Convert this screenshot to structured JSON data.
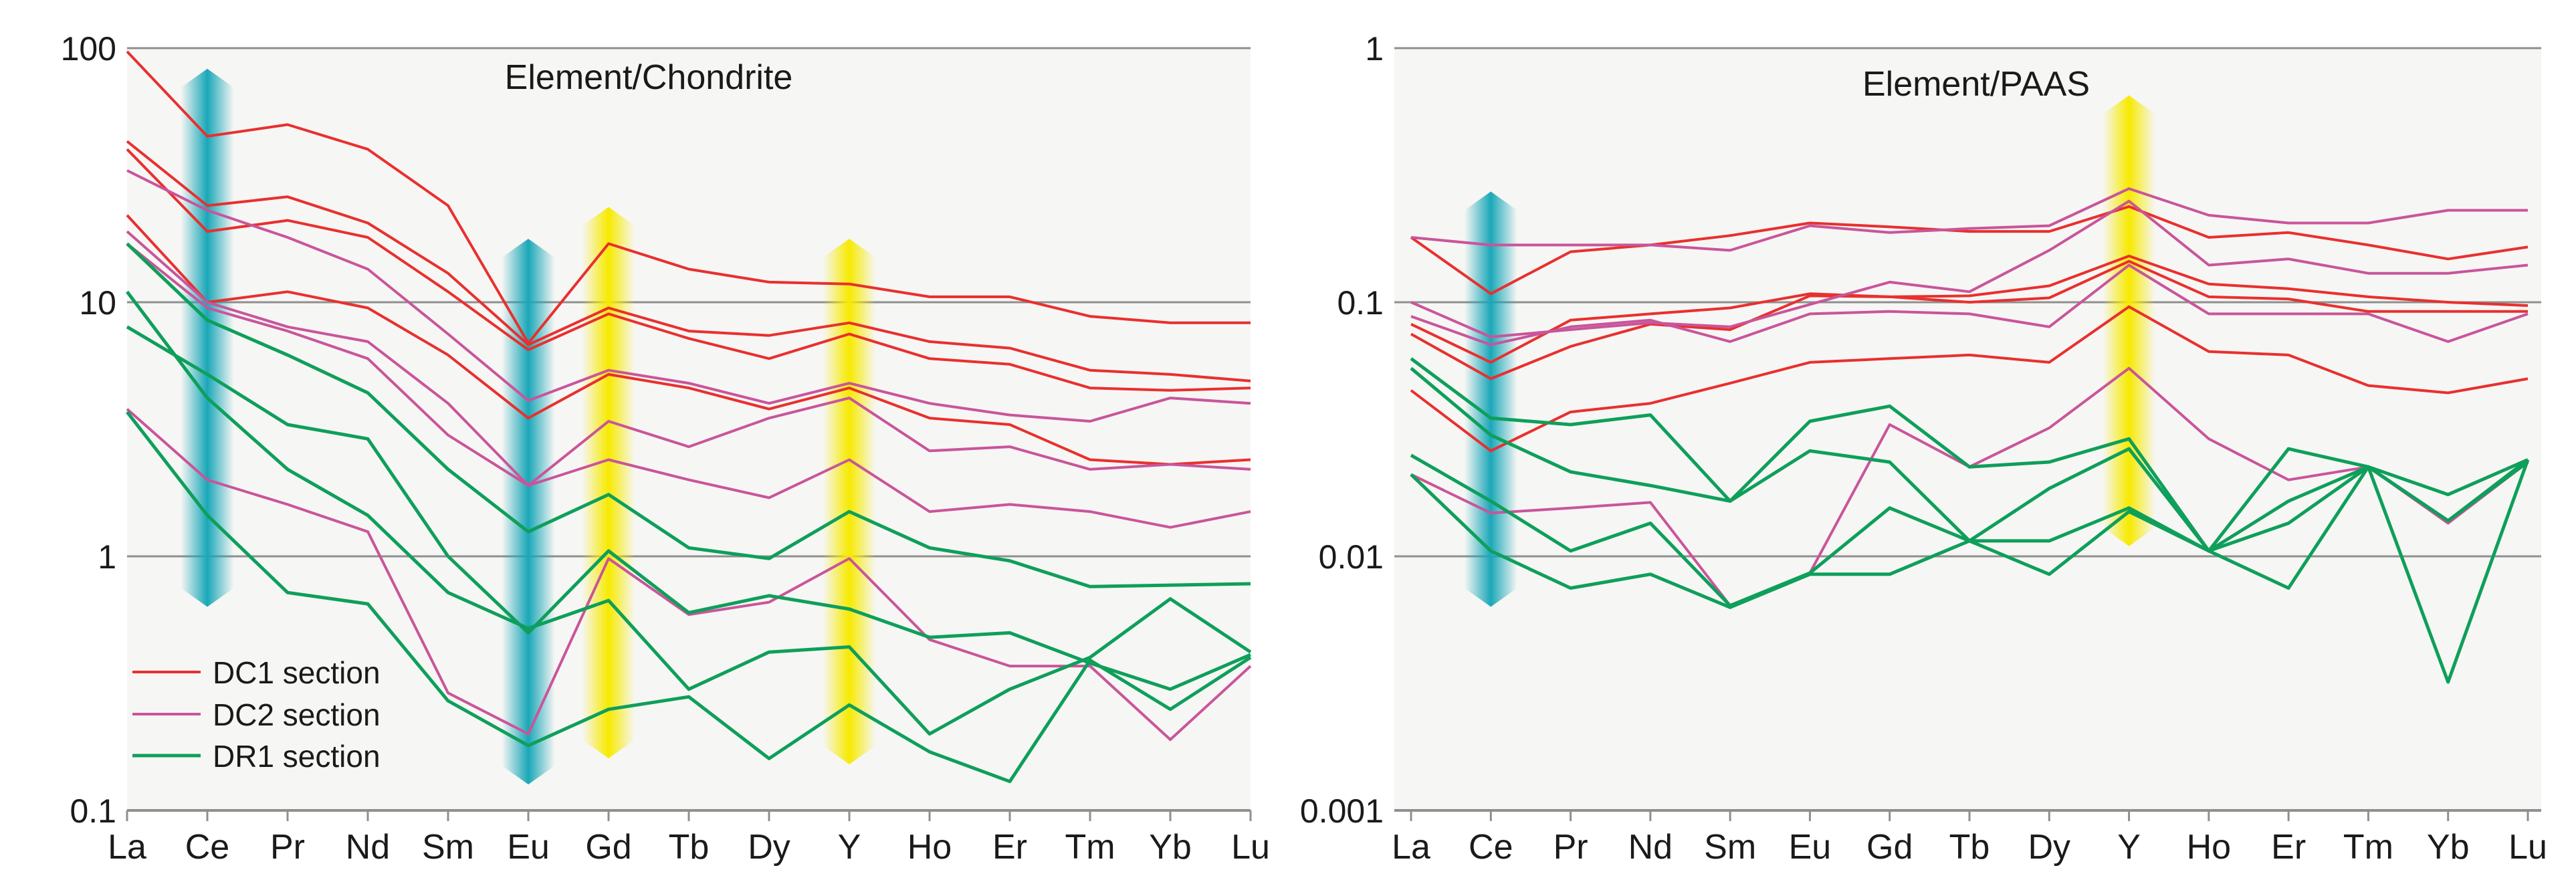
{
  "colors": {
    "dc1": "#e8302e",
    "dc2": "#c9559a",
    "dr1": "#0e9f5b",
    "ce_band": "#1aa7b8",
    "peak_band": "#f7ea00",
    "plot_bg": "#f6f6f4",
    "grid": "#8f8f8f"
  },
  "legend": [
    {
      "key": "dc1",
      "label": "DC1 section"
    },
    {
      "key": "dc2",
      "label": "DC2 section"
    },
    {
      "key": "dr1",
      "label": "DR1 section"
    }
  ],
  "chart_data": [
    {
      "type": "line",
      "title": "Element/Chondrite",
      "yscale": "log",
      "ylim": [
        0.1,
        100
      ],
      "yticks": [
        {
          "value": 0.1,
          "label": "0.1"
        },
        {
          "value": 1,
          "label": "1"
        },
        {
          "value": 10,
          "label": "10"
        },
        {
          "value": 100,
          "label": "100"
        }
      ],
      "categories": [
        "La",
        "Ce",
        "Pr",
        "Nd",
        "Sm",
        "Eu",
        "Gd",
        "Tb",
        "Dy",
        "Y",
        "Ho",
        "Er",
        "Tm",
        "Yb",
        "Lu"
      ],
      "highlight_bands": [
        {
          "category": "Ce",
          "color_key": "ce_band",
          "ymin": 0.75,
          "ymax": 70
        },
        {
          "category": "Eu",
          "color_key": "ce_band",
          "ymin": 0.15,
          "ymax": 15
        },
        {
          "category": "Gd",
          "color_key": "peak_band",
          "ymin": 0.19,
          "ymax": 20
        },
        {
          "category": "Y",
          "color_key": "peak_band",
          "ymin": 0.18,
          "ymax": 15
        }
      ],
      "series": [
        {
          "group": "dc1",
          "values": [
            97,
            45,
            50,
            40,
            24,
            6.9,
            17,
            13.5,
            12,
            11.8,
            10.5,
            10.5,
            8.8,
            8.3,
            8.3
          ]
        },
        {
          "group": "dc1",
          "values": [
            43,
            24,
            26,
            20.5,
            13,
            6.8,
            9.5,
            7.7,
            7.4,
            8.3,
            7.0,
            6.6,
            5.4,
            5.2,
            4.9
          ]
        },
        {
          "group": "dc1",
          "values": [
            40,
            19,
            21,
            18,
            11,
            6.5,
            9.0,
            7.2,
            6.0,
            7.5,
            6.0,
            5.7,
            4.6,
            4.5,
            4.6
          ]
        },
        {
          "group": "dc1",
          "values": [
            22,
            10,
            11,
            9.5,
            6.2,
            3.5,
            5.2,
            4.6,
            3.8,
            4.6,
            3.5,
            3.3,
            2.4,
            2.3,
            2.4
          ]
        },
        {
          "group": "dc2",
          "values": [
            33,
            23,
            18,
            13.5,
            7.5,
            4.1,
            5.4,
            4.8,
            4.0,
            4.8,
            4.0,
            3.6,
            3.4,
            4.2,
            4.0
          ]
        },
        {
          "group": "dc2",
          "values": [
            19,
            10,
            8.0,
            7.0,
            4.0,
            1.9,
            3.4,
            2.7,
            3.5,
            4.2,
            2.6,
            2.7,
            2.2,
            2.3,
            2.2
          ]
        },
        {
          "group": "dc2",
          "values": [
            17,
            9.5,
            7.7,
            6.0,
            3.0,
            1.9,
            2.4,
            2.0,
            1.7,
            2.4,
            1.5,
            1.6,
            1.5,
            1.3,
            1.5
          ]
        },
        {
          "group": "dc2",
          "values": [
            3.8,
            2.0,
            1.6,
            1.25,
            0.29,
            0.2,
            0.98,
            0.59,
            0.66,
            0.98,
            0.47,
            0.37,
            0.37,
            0.19,
            0.37
          ]
        },
        {
          "group": "dr1",
          "values": [
            17,
            8.5,
            6.2,
            4.4,
            2.2,
            1.25,
            1.75,
            1.08,
            0.98,
            1.5,
            1.08,
            0.96,
            0.76,
            0.77,
            0.78
          ]
        },
        {
          "group": "dr1",
          "values": [
            11,
            4.2,
            2.2,
            1.45,
            0.72,
            0.52,
            0.67,
            0.3,
            0.42,
            0.44,
            0.2,
            0.3,
            0.4,
            0.68,
            0.42
          ]
        },
        {
          "group": "dr1",
          "values": [
            8.0,
            5.2,
            3.3,
            2.9,
            1.0,
            0.5,
            1.05,
            0.6,
            0.7,
            0.62,
            0.48,
            0.5,
            0.38,
            0.3,
            0.41
          ]
        },
        {
          "group": "dr1",
          "values": [
            3.7,
            1.45,
            0.72,
            0.65,
            0.27,
            0.18,
            0.25,
            0.28,
            0.16,
            0.26,
            0.17,
            0.13,
            0.39,
            0.25,
            0.4
          ]
        }
      ]
    },
    {
      "type": "line",
      "title": "Element/PAAS",
      "yscale": "log",
      "ylim": [
        0.001,
        1
      ],
      "yticks": [
        {
          "value": 0.001,
          "label": "0.001"
        },
        {
          "value": 0.01,
          "label": "0.01"
        },
        {
          "value": 0.1,
          "label": "0.1"
        },
        {
          "value": 1,
          "label": "1"
        }
      ],
      "categories": [
        "La",
        "Ce",
        "Pr",
        "Nd",
        "Sm",
        "Eu",
        "Gd",
        "Tb",
        "Dy",
        "Y",
        "Ho",
        "Er",
        "Tm",
        "Yb",
        "Lu"
      ],
      "highlight_bands": [
        {
          "category": "Ce",
          "color_key": "ce_band",
          "ymin": 0.0075,
          "ymax": 0.23
        },
        {
          "category": "Y",
          "color_key": "peak_band",
          "ymin": 0.013,
          "ymax": 0.55
        }
      ],
      "series": [
        {
          "group": "dc1",
          "values": [
            0.18,
            0.108,
            0.158,
            0.168,
            0.183,
            0.205,
            0.198,
            0.19,
            0.19,
            0.238,
            0.18,
            0.188,
            0.168,
            0.148,
            0.165
          ]
        },
        {
          "group": "dc1",
          "values": [
            0.082,
            0.058,
            0.085,
            0.09,
            0.095,
            0.108,
            0.105,
            0.106,
            0.116,
            0.152,
            0.118,
            0.113,
            0.105,
            0.1,
            0.097
          ]
        },
        {
          "group": "dc1",
          "values": [
            0.075,
            0.05,
            0.067,
            0.082,
            0.078,
            0.106,
            0.105,
            0.1,
            0.104,
            0.145,
            0.105,
            0.103,
            0.092,
            0.092,
            0.092
          ]
        },
        {
          "group": "dc1",
          "values": [
            0.045,
            0.026,
            0.037,
            0.04,
            0.048,
            0.058,
            0.06,
            0.062,
            0.058,
            0.096,
            0.064,
            0.062,
            0.047,
            0.044,
            0.05
          ]
        },
        {
          "group": "dc2",
          "values": [
            0.18,
            0.168,
            0.168,
            0.168,
            0.16,
            0.2,
            0.188,
            0.195,
            0.2,
            0.28,
            0.22,
            0.205,
            0.205,
            0.23,
            0.23
          ]
        },
        {
          "group": "dc2",
          "values": [
            0.1,
            0.073,
            0.078,
            0.083,
            0.08,
            0.098,
            0.12,
            0.11,
            0.16,
            0.25,
            0.14,
            0.148,
            0.13,
            0.13,
            0.14
          ]
        },
        {
          "group": "dc2",
          "values": [
            0.088,
            0.068,
            0.08,
            0.085,
            0.07,
            0.09,
            0.092,
            0.09,
            0.08,
            0.14,
            0.09,
            0.09,
            0.09,
            0.07,
            0.09
          ]
        },
        {
          "group": "dc2",
          "values": [
            0.021,
            0.0148,
            0.0155,
            0.0163,
            0.0064,
            0.0086,
            0.033,
            0.0225,
            0.032,
            0.055,
            0.029,
            0.02,
            0.0225,
            0.0135,
            0.0235
          ]
        },
        {
          "group": "dr1",
          "values": [
            0.06,
            0.035,
            0.033,
            0.036,
            0.0165,
            0.034,
            0.039,
            0.0225,
            0.0235,
            0.029,
            0.0105,
            0.0165,
            0.0225,
            0.0175,
            0.024
          ]
        },
        {
          "group": "dr1",
          "values": [
            0.055,
            0.03,
            0.0215,
            0.019,
            0.0165,
            0.026,
            0.0235,
            0.0115,
            0.0185,
            0.0265,
            0.0105,
            0.0265,
            0.0225,
            0.0138,
            0.024
          ]
        },
        {
          "group": "dr1",
          "values": [
            0.025,
            0.0165,
            0.0105,
            0.0135,
            0.0064,
            0.0086,
            0.0155,
            0.0115,
            0.0115,
            0.0155,
            0.0105,
            0.0135,
            0.0225,
            0.0032,
            0.024
          ]
        },
        {
          "group": "dr1",
          "values": [
            0.021,
            0.0105,
            0.0075,
            0.0085,
            0.0063,
            0.0085,
            0.0085,
            0.0115,
            0.0085,
            0.015,
            0.0105,
            0.0075,
            0.0225,
            0.0138,
            0.0235
          ]
        }
      ]
    }
  ]
}
